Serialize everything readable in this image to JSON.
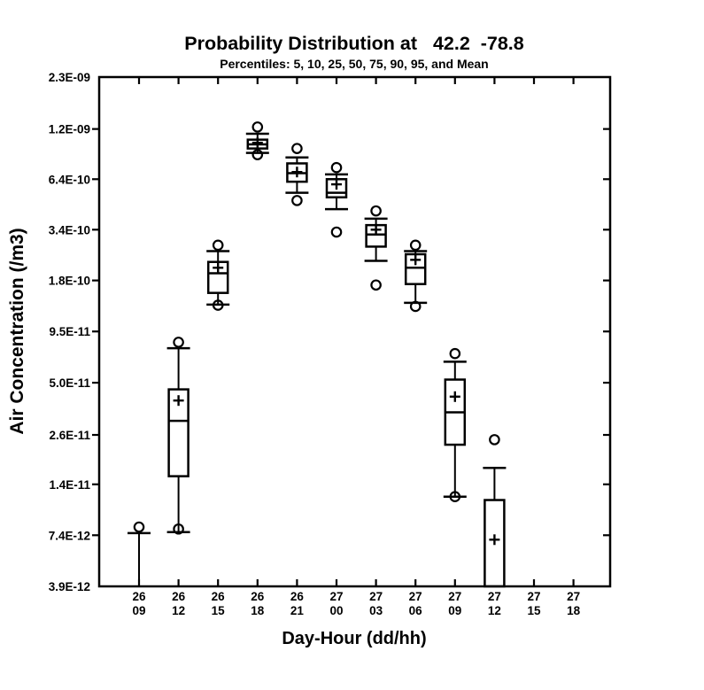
{
  "page": {
    "background": "#ffffff",
    "stroke_color": "#000000",
    "box_fill": "#ffffff"
  },
  "chart_data": {
    "type": "boxplot",
    "title": "Probability Distribution at   42.2  -78.8",
    "subtitle": "Percentiles: 5, 10, 25, 50, 75, 90, 95, and Mean",
    "xlabel": "Day-Hour (dd/hh)",
    "ylabel": "Air Concentration (/m3)",
    "y_scale": "log",
    "ylim": [
      3.9e-12,
      2.3e-09
    ],
    "y_ticks": [
      {
        "label": "2.3E-09",
        "value": 2.3e-09
      },
      {
        "label": "1.2E-09",
        "value": 1.2e-09
      },
      {
        "label": "6.4E-10",
        "value": 6.4e-10
      },
      {
        "label": "3.4E-10",
        "value": 3.4e-10
      },
      {
        "label": "1.8E-10",
        "value": 1.8e-10
      },
      {
        "label": "9.5E-11",
        "value": 9.5e-11
      },
      {
        "label": "5.0E-11",
        "value": 5e-11
      },
      {
        "label": "2.6E-11",
        "value": 2.6e-11
      },
      {
        "label": "1.4E-11",
        "value": 1.4e-11
      },
      {
        "label": "7.4E-12",
        "value": 7.4e-12
      },
      {
        "label": "3.9E-12",
        "value": 3.9e-12
      }
    ],
    "categories": [
      {
        "day": "26",
        "hour": "09"
      },
      {
        "day": "26",
        "hour": "12"
      },
      {
        "day": "26",
        "hour": "15"
      },
      {
        "day": "26",
        "hour": "18"
      },
      {
        "day": "26",
        "hour": "21"
      },
      {
        "day": "27",
        "hour": "00"
      },
      {
        "day": "27",
        "hour": "03"
      },
      {
        "day": "27",
        "hour": "06"
      },
      {
        "day": "27",
        "hour": "09"
      },
      {
        "day": "27",
        "hour": "12"
      },
      {
        "day": "27",
        "hour": "15"
      },
      {
        "day": "27",
        "hour": "18"
      }
    ],
    "boxes": [
      {
        "category": "26 09",
        "p5": null,
        "p10": null,
        "p25": null,
        "p50": null,
        "p75": null,
        "p90": 7.6e-12,
        "p95": 8.2e-12,
        "mean": null
      },
      {
        "category": "26 12",
        "p5": 8e-12,
        "p10": 7.7e-12,
        "p25": 1.55e-11,
        "p50": 3.1e-11,
        "p75": 4.6e-11,
        "p90": 7.7e-11,
        "p95": 8.3e-11,
        "mean": 4e-11
      },
      {
        "category": "26 15",
        "p5": 1.32e-10,
        "p10": 1.33e-10,
        "p25": 1.54e-10,
        "p50": 1.97e-10,
        "p75": 2.27e-10,
        "p90": 2.6e-10,
        "p95": 2.8e-10,
        "mean": 2.11e-10
      },
      {
        "category": "26 18",
        "p5": 8.7e-10,
        "p10": 8.9e-10,
        "p25": 9.4e-10,
        "p50": 9.9e-10,
        "p75": 1.05e-09,
        "p90": 1.13e-09,
        "p95": 1.23e-09,
        "mean": 1.01e-09
      },
      {
        "category": "26 21",
        "p5": 4.9e-10,
        "p10": 5.4e-10,
        "p25": 6.2e-10,
        "p50": 6.9e-10,
        "p75": 7.8e-10,
        "p90": 8.4e-10,
        "p95": 9.4e-10,
        "mean": 7e-10
      },
      {
        "category": "27 00",
        "p5": 3.3e-10,
        "p10": 4.4e-10,
        "p25": 5.1e-10,
        "p50": 5.4e-10,
        "p75": 6.4e-10,
        "p90": 6.8e-10,
        "p95": 7.4e-10,
        "mean": 6e-10
      },
      {
        "category": "27 03",
        "p5": 1.7e-10,
        "p10": 2.3e-10,
        "p25": 2.75e-10,
        "p50": 3.2e-10,
        "p75": 3.6e-10,
        "p90": 3.9e-10,
        "p95": 4.3e-10,
        "mean": 3.4e-10
      },
      {
        "category": "27 06",
        "p5": 1.3e-10,
        "p10": 1.36e-10,
        "p25": 1.72e-10,
        "p50": 2.11e-10,
        "p75": 2.5e-10,
        "p90": 2.6e-10,
        "p95": 2.8e-10,
        "mean": 2.33e-10
      },
      {
        "category": "27 09",
        "p5": 1.2e-11,
        "p10": 1.2e-11,
        "p25": 2.3e-11,
        "p50": 3.45e-11,
        "p75": 5.2e-11,
        "p90": 6.5e-11,
        "p95": 7.2e-11,
        "mean": 4.2e-11
      },
      {
        "category": "27 12",
        "p5": null,
        "p10": null,
        "p25": null,
        "p50": null,
        "p75": 1.15e-11,
        "p90": 1.72e-11,
        "p95": 2.45e-11,
        "mean": 7e-12
      },
      {
        "category": "27 15",
        "p5": null,
        "p10": null,
        "p25": null,
        "p50": null,
        "p75": null,
        "p90": null,
        "p95": null,
        "mean": null
      },
      {
        "category": "27 18",
        "p5": null,
        "p10": null,
        "p25": null,
        "p50": null,
        "p75": null,
        "p90": null,
        "p95": null,
        "mean": null
      }
    ],
    "legend_position": "none",
    "grid": false
  }
}
